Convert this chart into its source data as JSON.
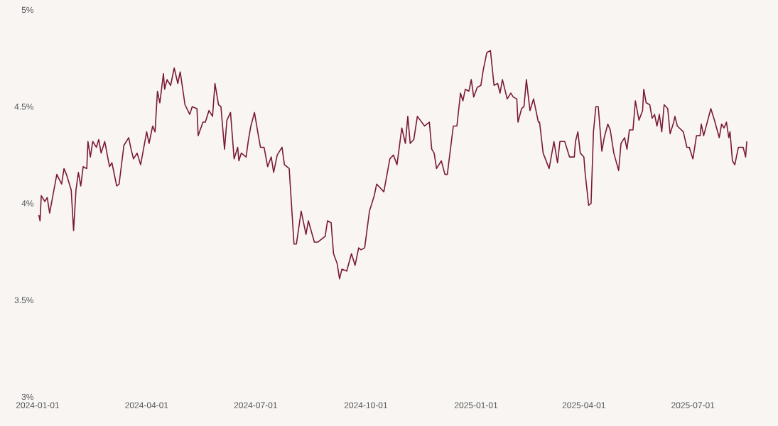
{
  "chart_data": {
    "type": "line",
    "x": [
      "2024-01-02",
      "2024-01-03",
      "2024-01-04",
      "2024-01-07",
      "2024-01-09",
      "2024-01-11",
      "2024-01-17",
      "2024-01-21",
      "2024-01-23",
      "2024-01-25",
      "2024-01-29",
      "2024-01-31",
      "2024-02-02",
      "2024-02-04",
      "2024-02-06",
      "2024-02-08",
      "2024-02-11",
      "2024-02-12",
      "2024-02-14",
      "2024-02-16",
      "2024-02-19",
      "2024-02-21",
      "2024-02-23",
      "2024-02-26",
      "2024-03-01",
      "2024-03-03",
      "2024-03-07",
      "2024-03-09",
      "2024-03-13",
      "2024-03-17",
      "2024-03-19",
      "2024-03-21",
      "2024-03-24",
      "2024-03-27",
      "2024-04-01",
      "2024-04-03",
      "2024-04-06",
      "2024-04-08",
      "2024-04-10",
      "2024-04-12",
      "2024-04-15",
      "2024-04-16",
      "2024-04-18",
      "2024-04-21",
      "2024-04-24",
      "2024-04-27",
      "2024-04-29",
      "2024-05-03",
      "2024-05-07",
      "2024-05-09",
      "2024-05-13",
      "2024-05-14",
      "2024-05-18",
      "2024-05-20",
      "2024-05-23",
      "2024-05-26",
      "2024-05-28",
      "2024-05-31",
      "2024-06-02",
      "2024-06-05",
      "2024-06-07",
      "2024-06-10",
      "2024-06-13",
      "2024-06-16",
      "2024-06-17",
      "2024-06-19",
      "2024-06-23",
      "2024-06-25",
      "2024-06-27",
      "2024-06-30",
      "2024-07-03",
      "2024-07-05",
      "2024-07-08",
      "2024-07-11",
      "2024-07-14",
      "2024-07-16",
      "2024-07-19",
      "2024-07-23",
      "2024-07-25",
      "2024-07-29",
      "2024-08-02",
      "2024-08-04",
      "2024-08-08",
      "2024-08-12",
      "2024-08-14",
      "2024-08-19",
      "2024-08-22",
      "2024-08-28",
      "2024-08-30",
      "2024-09-02",
      "2024-09-04",
      "2024-09-07",
      "2024-09-09",
      "2024-09-11",
      "2024-09-15",
      "2024-09-19",
      "2024-09-22",
      "2024-09-25",
      "2024-09-27",
      "2024-09-30",
      "2024-10-04",
      "2024-10-08",
      "2024-10-10",
      "2024-10-16",
      "2024-10-21",
      "2024-10-24",
      "2024-10-27",
      "2024-10-31",
      "2024-11-03",
      "2024-11-05",
      "2024-11-07",
      "2024-11-10",
      "2024-11-13",
      "2024-11-19",
      "2024-11-23",
      "2024-11-25",
      "2024-11-27",
      "2024-11-29",
      "2024-12-03",
      "2024-12-06",
      "2024-12-08",
      "2024-12-13",
      "2024-12-16",
      "2024-12-19",
      "2024-12-21",
      "2024-12-23",
      "2024-12-26",
      "2024-12-28",
      "2024-12-30",
      "2025-01-02",
      "2025-01-05",
      "2025-01-07",
      "2025-01-10",
      "2025-01-13",
      "2025-01-16",
      "2025-01-19",
      "2025-01-21",
      "2025-01-23",
      "2025-01-27",
      "2025-01-30",
      "2025-02-01",
      "2025-02-04",
      "2025-02-05",
      "2025-02-08",
      "2025-02-10",
      "2025-02-12",
      "2025-02-15",
      "2025-02-18",
      "2025-02-22",
      "2025-02-23",
      "2025-02-26",
      "2025-03-03",
      "2025-03-07",
      "2025-03-10",
      "2025-03-12",
      "2025-03-16",
      "2025-03-20",
      "2025-03-24",
      "2025-03-25",
      "2025-03-27",
      "2025-03-29",
      "2025-04-01",
      "2025-04-02",
      "2025-04-05",
      "2025-04-07",
      "2025-04-09",
      "2025-04-11",
      "2025-04-13",
      "2025-04-16",
      "2025-04-18",
      "2025-04-21",
      "2025-04-23",
      "2025-04-26",
      "2025-04-30",
      "2025-05-02",
      "2025-05-05",
      "2025-05-07",
      "2025-05-09",
      "2025-05-12",
      "2025-05-14",
      "2025-05-17",
      "2025-05-20",
      "2025-05-21",
      "2025-05-23",
      "2025-05-26",
      "2025-05-28",
      "2025-05-30",
      "2025-06-01",
      "2025-06-03",
      "2025-06-05",
      "2025-06-07",
      "2025-06-10",
      "2025-06-12",
      "2025-06-15",
      "2025-06-16",
      "2025-06-18",
      "2025-06-23",
      "2025-06-26",
      "2025-06-28",
      "2025-07-01",
      "2025-07-04",
      "2025-07-07",
      "2025-07-08",
      "2025-07-10",
      "2025-07-13",
      "2025-07-16",
      "2025-07-19",
      "2025-07-23",
      "2025-07-25",
      "2025-07-27",
      "2025-07-29",
      "2025-07-31",
      "2025-08-01",
      "2025-08-03",
      "2025-08-05",
      "2025-08-08",
      "2025-08-12",
      "2025-08-14",
      "2025-08-15"
    ],
    "series": [
      {
        "color": "#7a1a33",
        "values": [
          3.94,
          3.91,
          4.04,
          4.01,
          4.03,
          3.95,
          4.15,
          4.1,
          4.18,
          4.15,
          4.07,
          3.86,
          4.07,
          4.16,
          4.09,
          4.19,
          4.18,
          4.32,
          4.24,
          4.32,
          4.29,
          4.33,
          4.26,
          4.32,
          4.19,
          4.21,
          4.09,
          4.1,
          4.3,
          4.34,
          4.28,
          4.23,
          4.26,
          4.2,
          4.37,
          4.31,
          4.4,
          4.37,
          4.58,
          4.52,
          4.67,
          4.59,
          4.64,
          4.61,
          4.7,
          4.62,
          4.68,
          4.51,
          4.46,
          4.5,
          4.49,
          4.35,
          4.42,
          4.42,
          4.48,
          4.45,
          4.62,
          4.51,
          4.5,
          4.28,
          4.43,
          4.47,
          4.23,
          4.29,
          4.22,
          4.26,
          4.24,
          4.33,
          4.4,
          4.47,
          4.36,
          4.29,
          4.29,
          4.19,
          4.24,
          4.16,
          4.25,
          4.29,
          4.2,
          4.18,
          3.79,
          3.79,
          3.96,
          3.84,
          3.91,
          3.8,
          3.8,
          3.83,
          3.91,
          3.9,
          3.74,
          3.69,
          3.61,
          3.66,
          3.65,
          3.74,
          3.68,
          3.77,
          3.76,
          3.77,
          3.96,
          4.04,
          4.1,
          4.06,
          4.23,
          4.25,
          4.2,
          4.39,
          4.31,
          4.45,
          4.31,
          4.33,
          4.45,
          4.4,
          4.42,
          4.28,
          4.26,
          4.18,
          4.22,
          4.15,
          4.15,
          4.4,
          4.4,
          4.57,
          4.53,
          4.59,
          4.58,
          4.64,
          4.55,
          4.6,
          4.61,
          4.69,
          4.78,
          4.79,
          4.61,
          4.62,
          4.57,
          4.64,
          4.54,
          4.57,
          4.55,
          4.54,
          4.42,
          4.49,
          4.5,
          4.64,
          4.48,
          4.54,
          4.42,
          4.42,
          4.26,
          4.18,
          4.32,
          4.21,
          4.32,
          4.32,
          4.24,
          4.24,
          4.32,
          4.37,
          4.26,
          4.24,
          4.16,
          3.99,
          4.0,
          4.37,
          4.5,
          4.5,
          4.27,
          4.34,
          4.41,
          4.38,
          4.26,
          4.17,
          4.31,
          4.34,
          4.28,
          4.38,
          4.38,
          4.53,
          4.43,
          4.48,
          4.59,
          4.52,
          4.51,
          4.44,
          4.46,
          4.4,
          4.46,
          4.37,
          4.51,
          4.49,
          4.36,
          4.42,
          4.45,
          4.4,
          4.37,
          4.29,
          4.29,
          4.23,
          4.35,
          4.35,
          4.41,
          4.35,
          4.42,
          4.49,
          4.43,
          4.34,
          4.41,
          4.39,
          4.42,
          4.34,
          4.37,
          4.22,
          4.2,
          4.29,
          4.29,
          4.24,
          4.32
        ]
      }
    ],
    "xlim": [
      "2024-01-01",
      "2025-09-10"
    ],
    "xticks": [
      "2024-01-01",
      "2024-04-01",
      "2024-07-01",
      "2024-10-01",
      "2025-01-01",
      "2025-04-01",
      "2025-07-01"
    ],
    "ylim": [
      3,
      5
    ],
    "yticks": [
      {
        "value": 3,
        "label": "3%"
      },
      {
        "value": 3.5,
        "label": "3.5%"
      },
      {
        "value": 4,
        "label": "4%"
      },
      {
        "value": 4.5,
        "label": "4.5%"
      },
      {
        "value": 5,
        "label": "5%"
      }
    ]
  }
}
